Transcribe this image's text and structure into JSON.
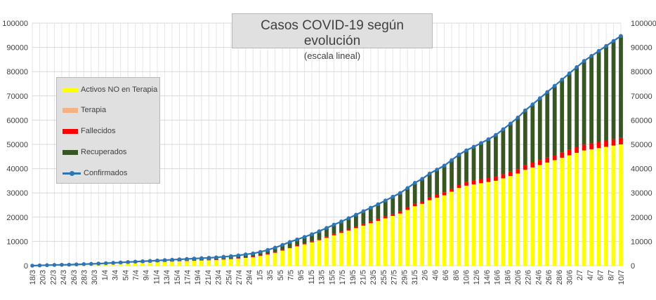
{
  "chart_data": {
    "type": "bar",
    "title": "Casos COVID-19 según evolución",
    "subtitle": "(escala lineal)",
    "stacked": true,
    "ylim": [
      0,
      100000
    ],
    "yticks": [
      "100000",
      "90000",
      "80000",
      "70000",
      "60000",
      "50000",
      "40000",
      "30000",
      "20000",
      "10000",
      "0"
    ],
    "yticks_right": [
      "100000",
      "90000",
      "80000",
      "70000",
      "60000",
      "50000",
      "40000",
      "30000",
      "20000",
      "10000",
      "0"
    ],
    "xtick_labels": [
      "18/3",
      "20/3",
      "22/3",
      "24/3",
      "26/3",
      "28/3",
      "30/3",
      "1/4",
      "3/4",
      "5/4",
      "7/4",
      "9/4",
      "11/4",
      "13/4",
      "15/4",
      "17/4",
      "19/4",
      "21/4",
      "23/4",
      "25/4",
      "27/4",
      "29/4",
      "1/5",
      "3/5",
      "5/5",
      "7/5",
      "9/5",
      "11/5",
      "13/5",
      "15/5",
      "17/5",
      "19/5",
      "21/5",
      "23/5",
      "25/5",
      "27/5",
      "29/5",
      "31/5",
      "2/6",
      "4/6",
      "6/6",
      "8/6",
      "10/6",
      "12/6",
      "14/6",
      "16/6",
      "18/6",
      "20/6",
      "22/6",
      "24/6",
      "26/6",
      "28/6",
      "30/6",
      "2/7",
      "4/7",
      "6/7",
      "8/7",
      "10/7"
    ],
    "legend_position": "left",
    "grid": true,
    "colors": {
      "activos": "#ffff00",
      "terapia": "#f4b183",
      "fallecidos": "#ff0000",
      "recuperados": "#375623",
      "confirmados": "#2e75b6"
    },
    "series": [
      {
        "name": "Activos NO en Terapia",
        "type": "bar",
        "values": [
          0,
          100,
          200,
          300,
          350,
          400,
          500,
          600,
          650,
          700,
          800,
          900,
          1000,
          1100,
          1200,
          1300,
          1400,
          1500,
          1600,
          1700,
          1800,
          1900,
          2000,
          2100,
          2200,
          2300,
          2500,
          2700,
          2900,
          3200,
          3500,
          4000,
          4600,
          5300,
          6200,
          7200,
          8000,
          8800,
          9600,
          10500,
          11500,
          12500,
          13500,
          14500,
          15500,
          16500,
          17500,
          18500,
          19500,
          20500,
          21500,
          23000,
          24500,
          25500,
          27000,
          28000,
          29000,
          30500,
          32000,
          33000,
          33500,
          34000,
          34500,
          35000,
          36000,
          37000,
          38000,
          39500,
          40500,
          41500,
          42500,
          43500,
          44500,
          45500,
          46500,
          47500,
          48000,
          48500,
          49000,
          49500,
          50000
        ]
      },
      {
        "name": "Terapia",
        "type": "bar",
        "values": [
          0,
          0,
          0,
          0,
          0,
          0,
          0,
          0,
          0,
          0,
          0,
          0,
          0,
          0,
          0,
          0,
          0,
          0,
          0,
          0,
          0,
          0,
          0,
          0,
          0,
          0,
          0,
          0,
          0,
          0,
          0,
          0,
          0,
          0,
          0,
          0,
          0,
          0,
          0,
          0,
          0,
          0,
          0,
          0,
          0,
          0,
          0,
          0,
          0,
          0,
          0,
          0,
          0,
          0,
          0,
          0,
          0,
          0,
          0,
          0,
          0,
          0,
          0,
          0,
          0,
          0,
          0,
          0,
          0,
          0,
          0,
          0,
          0,
          0,
          0,
          0,
          0,
          0,
          0,
          0,
          0
        ]
      },
      {
        "name": "Fallecidos",
        "type": "bar",
        "values": [
          0,
          0,
          0,
          0,
          0,
          0,
          10,
          20,
          30,
          40,
          50,
          60,
          70,
          80,
          90,
          100,
          110,
          120,
          130,
          140,
          150,
          160,
          170,
          180,
          190,
          200,
          210,
          220,
          230,
          240,
          250,
          270,
          290,
          310,
          340,
          370,
          400,
          430,
          460,
          500,
          540,
          580,
          620,
          660,
          700,
          740,
          780,
          820,
          860,
          900,
          950,
          1000,
          1050,
          1100,
          1150,
          1200,
          1260,
          1320,
          1380,
          1440,
          1500,
          1560,
          1620,
          1680,
          1740,
          1800,
          1860,
          1920,
          1980,
          2040,
          2100,
          2160,
          2220,
          2280,
          2340,
          2400,
          2460,
          2520,
          2580,
          2640,
          2700
        ]
      },
      {
        "name": "Recuperados",
        "type": "bar",
        "values": [
          0,
          0,
          0,
          0,
          0,
          0,
          0,
          0,
          50,
          100,
          150,
          200,
          250,
          300,
          350,
          400,
          450,
          500,
          550,
          600,
          650,
          700,
          750,
          800,
          850,
          900,
          950,
          1000,
          1100,
          1200,
          1300,
          1400,
          1600,
          1800,
          2000,
          2200,
          2400,
          2600,
          2900,
          3200,
          3500,
          3800,
          4100,
          4400,
          4800,
          5200,
          5600,
          6000,
          6500,
          7000,
          7500,
          8000,
          8600,
          9200,
          9800,
          10400,
          11000,
          11700,
          12400,
          13100,
          14000,
          15000,
          16000,
          17200,
          18500,
          19800,
          21200,
          22600,
          24000,
          25500,
          27000,
          28500,
          30000,
          31500,
          33000,
          34500,
          36000,
          37500,
          39000,
          40500,
          42000
        ]
      },
      {
        "name": "Confirmados",
        "type": "line",
        "values": [
          0,
          100,
          200,
          300,
          350,
          400,
          510,
          620,
          730,
          840,
          1000,
          1160,
          1320,
          1480,
          1640,
          1800,
          1960,
          2120,
          2280,
          2440,
          2600,
          2760,
          2920,
          3080,
          3240,
          3400,
          3660,
          3920,
          4230,
          4640,
          5050,
          5670,
          6490,
          7410,
          8540,
          9770,
          10800,
          11830,
          12960,
          14200,
          15540,
          16880,
          18220,
          19560,
          21000,
          22440,
          23880,
          25320,
          26860,
          28400,
          29950,
          32000,
          34150,
          35800,
          37950,
          39600,
          41260,
          43520,
          45780,
          47540,
          49000,
          50560,
          52120,
          53880,
          56240,
          58600,
          61060,
          64020,
          66480,
          69040,
          71600,
          74160,
          76720,
          79280,
          81840,
          84400,
          86460,
          88520,
          90580,
          92640,
          94700
        ]
      }
    ]
  }
}
